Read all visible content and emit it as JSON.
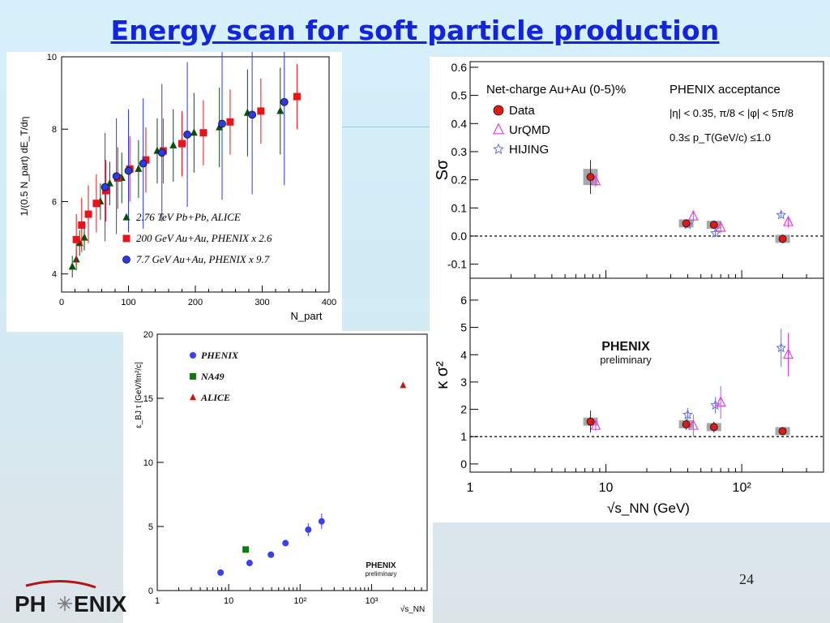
{
  "slide": {
    "title": "Energy scan for soft particle production",
    "page_number": "24",
    "logo_text_left": "PH",
    "logo_text_right": "ENIX"
  },
  "chart_data": [
    {
      "type": "scatter",
      "ylabel": "1/(0.5 N_part) dE_T/dη",
      "xlabel": "N_part",
      "xlim": [
        0,
        400
      ],
      "ylim": [
        3.5,
        10
      ],
      "xticks": [
        "0",
        "100",
        "200",
        "300",
        "400"
      ],
      "yticks": [
        "4",
        "6",
        "8",
        "10"
      ],
      "legend_position": "bottom-right",
      "series": [
        {
          "name": "2.76 TeV Pb+Pb, ALICE",
          "marker": "triangle",
          "color": "#0b4d0b",
          "x": [
            16,
            22,
            27,
            34,
            58,
            72,
            90,
            115,
            143,
            167,
            198,
            236,
            278,
            327
          ],
          "y": [
            4.2,
            4.4,
            4.85,
            5.0,
            6.0,
            6.5,
            6.65,
            6.9,
            7.4,
            7.55,
            7.9,
            8.05,
            8.45,
            8.5
          ],
          "err": [
            0.3,
            0.3,
            0.35,
            0.35,
            0.5,
            0.6,
            0.7,
            0.8,
            0.9,
            1.0,
            1.1,
            1.1,
            1.2,
            1.2
          ]
        },
        {
          "name": "200 GeV Au+Au, PHENIX x 2.6",
          "marker": "square",
          "color": "#e8141c",
          "x": [
            22,
            30,
            40,
            52,
            66,
            84,
            102,
            126,
            152,
            180,
            212,
            252,
            298,
            352
          ],
          "y": [
            4.95,
            5.35,
            5.65,
            5.95,
            6.3,
            6.65,
            6.9,
            7.15,
            7.4,
            7.6,
            7.9,
            8.2,
            8.5,
            8.9
          ],
          "err": [
            0.7,
            0.75,
            0.8,
            0.8,
            0.85,
            0.85,
            0.9,
            0.9,
            0.9,
            0.9,
            0.9,
            0.9,
            0.9,
            0.9
          ]
        },
        {
          "name": "7.7 GeV Au+Au, PHENIX x 9.7",
          "marker": "circle",
          "color": "#2a3ae8",
          "x": [
            65,
            82,
            100,
            122,
            150,
            188,
            240,
            285,
            333
          ],
          "y": [
            6.4,
            6.7,
            6.85,
            7.05,
            7.35,
            7.85,
            8.15,
            8.4,
            8.75
          ],
          "err": [
            1.5,
            1.6,
            1.7,
            1.8,
            1.9,
            2.0,
            2.1,
            2.2,
            2.3
          ]
        }
      ]
    },
    {
      "type": "scatter",
      "xlabel": "√s_NN (GeV)",
      "xscale": "log",
      "xlim": [
        1,
        400
      ],
      "xticks": [
        "1",
        "10",
        "10²"
      ],
      "panels": [
        {
          "ylabel": "Sσ",
          "ylim": [
            -0.15,
            0.62
          ],
          "yticks": [
            "-0.1",
            "0.0",
            "0.1",
            "0.2",
            "0.3",
            "0.4",
            "0.5",
            "0.6"
          ],
          "reference_line": 0,
          "annotation_title": "Net-charge Au+Au (0-5)%",
          "acceptance_title": "PHENIX acceptance",
          "acceptance_eta": "|η| < 0.35, π/8 < |φ| < 5π/8",
          "acceptance_pt": "0.3≤ p_T(GeV/c) ≤1.0",
          "series": [
            {
              "name": "Data",
              "marker": "circle",
              "color": "#e01818",
              "x": [
                7.7,
                39,
                62.4,
                200
              ],
              "y": [
                0.21,
                0.045,
                0.04,
                -0.01
              ],
              "err": [
                0.06,
                0.015,
                0.015,
                0.015
              ]
            },
            {
              "name": "UrQMD",
              "marker": "triangle-open",
              "color": "#e040e0",
              "x": [
                8.4,
                44,
                70,
                220
              ],
              "y": [
                0.195,
                0.07,
                0.03,
                0.05
              ],
              "err": [
                0.02,
                0.02,
                0.02,
                0.02
              ]
            },
            {
              "name": "HIJING",
              "marker": "star-open",
              "color": "#6070e0",
              "x": [
                40,
                64,
                195
              ],
              "y": [
                0.04,
                0.01,
                0.075
              ],
              "err": [
                0.01,
                0.01,
                0.01
              ]
            }
          ]
        },
        {
          "ylabel": "κ σ²",
          "ylim": [
            -0.3,
            6.8
          ],
          "yticks": [
            "0",
            "1",
            "2",
            "3",
            "4",
            "5",
            "6"
          ],
          "reference_line": 1,
          "watermark_1": "PHENIX",
          "watermark_2": "preliminary",
          "series": [
            {
              "name": "Data",
              "marker": "circle",
              "color": "#e01818",
              "x": [
                7.7,
                39,
                62.4,
                200
              ],
              "y": [
                1.55,
                1.45,
                1.35,
                1.2
              ],
              "err": [
                0.4,
                0.2,
                0.2,
                0.15
              ]
            },
            {
              "name": "UrQMD",
              "marker": "triangle-open",
              "color": "#e040e0",
              "x": [
                8.4,
                44,
                70,
                220
              ],
              "y": [
                1.4,
                1.4,
                2.25,
                4.0
              ],
              "err": [
                0.2,
                0.4,
                0.6,
                0.8
              ]
            },
            {
              "name": "HIJING",
              "marker": "star-open",
              "color": "#6070e0",
              "x": [
                40,
                64,
                195
              ],
              "y": [
                1.8,
                2.15,
                4.25
              ],
              "err": [
                0.25,
                0.3,
                0.7
              ]
            }
          ]
        }
      ]
    },
    {
      "type": "scatter",
      "ylabel": "ε_BJ τ [GeV/fm²/c]",
      "xlabel": "√s_NN",
      "xscale": "log",
      "xlim": [
        1,
        6000
      ],
      "ylim": [
        0,
        20
      ],
      "xticks": [
        "1",
        "10",
        "10²",
        "10³"
      ],
      "yticks": [
        "0",
        "5",
        "10",
        "15",
        "20"
      ],
      "watermark_1": "PHENIX",
      "watermark_2": "preliminary",
      "series": [
        {
          "name": "PHENIX",
          "marker": "circle",
          "color": "#3a40ee",
          "x": [
            7.7,
            19.6,
            39,
            62.4,
            130,
            200
          ],
          "y": [
            1.4,
            2.15,
            2.8,
            3.7,
            4.75,
            5.4
          ],
          "err": [
            0,
            0,
            0,
            0,
            0.5,
            0.6
          ]
        },
        {
          "name": "NA49",
          "marker": "square",
          "color": "#127a12",
          "x": [
            17.3
          ],
          "y": [
            3.2
          ],
          "err": [
            0
          ]
        },
        {
          "name": "ALICE",
          "marker": "triangle",
          "color": "#c81414",
          "x": [
            2760
          ],
          "y": [
            16.0
          ],
          "err": [
            0
          ]
        }
      ]
    }
  ]
}
